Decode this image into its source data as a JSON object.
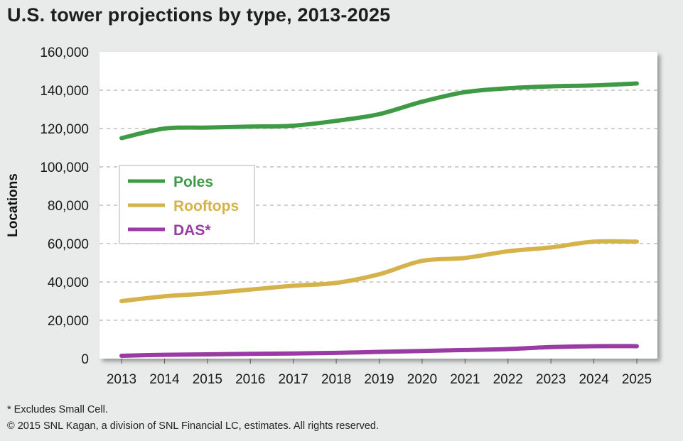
{
  "title": "U.S. tower projections by type, 2013-2025",
  "footnotes": {
    "excludes": "* Excludes Small Cell.",
    "copyright": "© 2015 SNL Kagan, a division of SNL Financial LC, estimates. All rights reserved."
  },
  "colors": {
    "poles": "#3f9a45",
    "rooftops": "#d6b24a",
    "das": "#9a3aa3",
    "background": "#e9eaea",
    "plot_background": "#ffffff",
    "grid": "#bfbfbf"
  },
  "chart_data": {
    "type": "line",
    "title": "U.S. tower projections by type, 2013-2025",
    "xlabel": "",
    "ylabel": "Locations",
    "x": [
      "2013",
      "2014",
      "2015",
      "2016",
      "2017",
      "2018",
      "2019",
      "2020",
      "2021",
      "2022",
      "2023",
      "2024",
      "2025"
    ],
    "ylim": [
      0,
      160000
    ],
    "yticks": [
      "0",
      "20,000",
      "40,000",
      "60,000",
      "80,000",
      "100,000",
      "120,000",
      "140,000",
      "160,000"
    ],
    "ytick_values": [
      0,
      20000,
      40000,
      60000,
      80000,
      100000,
      120000,
      140000,
      160000
    ],
    "grid": "horizontal dashed",
    "legend_position": "center-left",
    "series": [
      {
        "name": "Poles",
        "color": "#3f9a45",
        "values": [
          115000,
          120000,
          120500,
          121000,
          121500,
          124000,
          127500,
          134000,
          139000,
          141000,
          142000,
          142500,
          143500
        ]
      },
      {
        "name": "Rooftops",
        "color": "#d6b24a",
        "values": [
          30000,
          32500,
          34000,
          36000,
          38000,
          39500,
          44000,
          51000,
          52500,
          56000,
          58000,
          61000,
          61000
        ]
      },
      {
        "name": "DAS*",
        "color": "#9a3aa3",
        "values": [
          1500,
          2000,
          2200,
          2500,
          2700,
          3000,
          3500,
          4000,
          4500,
          5000,
          6000,
          6500,
          6500
        ]
      }
    ]
  }
}
